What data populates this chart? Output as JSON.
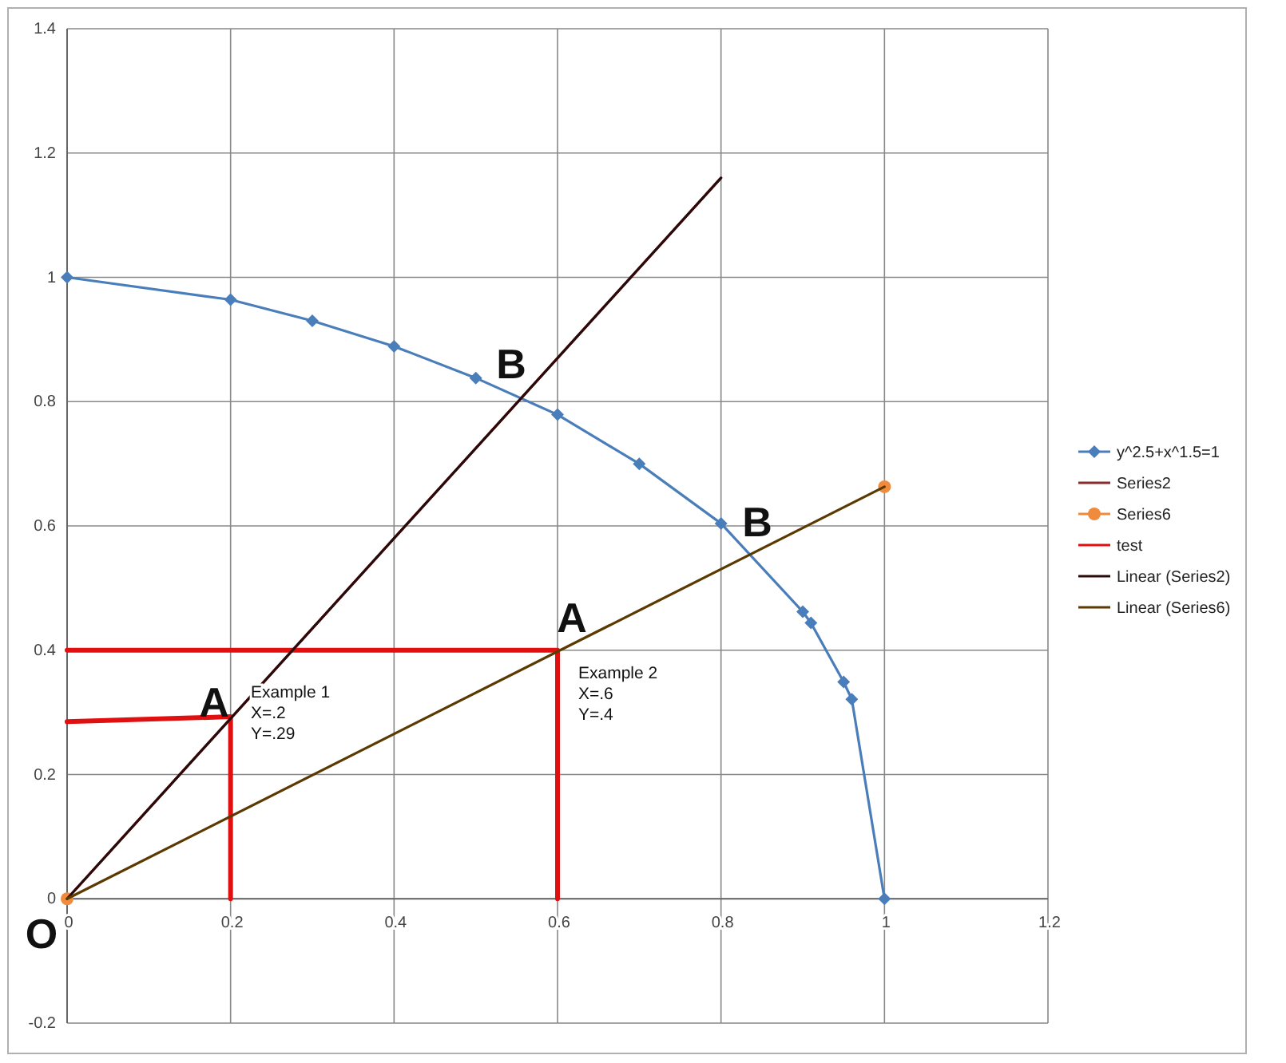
{
  "chart_data": {
    "type": "scatter",
    "xlim": [
      0,
      1.2
    ],
    "ylim": [
      -0.2,
      1.4
    ],
    "xticks": [
      0,
      0.2,
      0.4,
      0.6,
      0.8,
      1,
      1.2
    ],
    "yticks": [
      -0.2,
      0,
      0.2,
      0.4,
      0.6,
      0.8,
      1,
      1.2,
      1.4
    ],
    "grid": true,
    "legend": "right",
    "series": [
      {
        "name": "y^2.5+x^1.5=1",
        "type": "line",
        "marker": "diamond",
        "color": "#4a7ebb",
        "x": [
          0,
          0.2,
          0.3,
          0.4,
          0.5,
          0.6,
          0.7,
          0.8,
          0.9,
          0.91,
          0.95,
          0.96,
          1
        ],
        "values": [
          1,
          0.964,
          0.93,
          0.889,
          0.838,
          0.779,
          0.7,
          0.604,
          0.462,
          0.444,
          0.349,
          0.321,
          0
        ]
      },
      {
        "name": "Series2",
        "type": "line",
        "marker": "none",
        "color": "#8b2a2a",
        "x": [
          0,
          0.8
        ],
        "values": [
          0,
          1.16
        ]
      },
      {
        "name": "Series6",
        "marker": "circle",
        "color": "#f08a3c",
        "x": [
          0,
          1
        ],
        "values": [
          0,
          0.663
        ]
      },
      {
        "name": "test",
        "type": "line",
        "marker": "none",
        "color": "#e01010",
        "x": [
          0,
          0.6,
          0.6
        ],
        "values": [
          0.4,
          0.4,
          0
        ]
      },
      {
        "type": "line",
        "marker": "none",
        "color": "#e01010",
        "x": [
          0,
          0.2,
          0.2
        ],
        "values": [
          0.285,
          0.293,
          0
        ]
      },
      {
        "name": "Linear (Series2)",
        "type": "line",
        "marker": "none",
        "color": "#2a0a0a",
        "x": [
          0,
          0.8
        ],
        "values": [
          0,
          1.16
        ]
      },
      {
        "name": "Linear (Series6)",
        "type": "line",
        "marker": "none",
        "color": "#5a3a00",
        "x": [
          0,
          1
        ],
        "values": [
          0,
          0.663
        ]
      }
    ],
    "annotations": [
      "B",
      "B",
      "A",
      "A",
      "O",
      "Example 1\nX=.2\nY=.29",
      "Example 2\nX=.6\nY=.4"
    ]
  }
}
